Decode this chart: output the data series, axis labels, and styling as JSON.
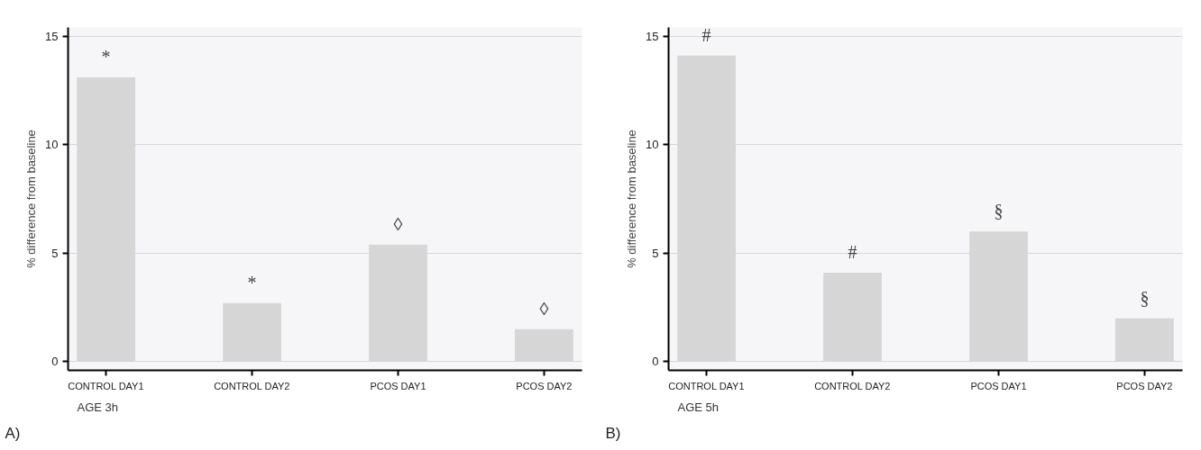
{
  "chart_data": [
    {
      "type": "bar",
      "categories": [
        "CONTROL DAY1",
        "CONTROL DAY2",
        "PCOS DAY1",
        "PCOS DAY2"
      ],
      "values": [
        13.1,
        2.7,
        5.4,
        1.5
      ],
      "color": "#d6d6d6",
      "ylabel": "% difference from baseline",
      "ylim": [
        -0.4,
        15.4
      ],
      "yticks": [
        0,
        5,
        10,
        15
      ],
      "grid": "y",
      "annotations": [
        {
          "text": "*",
          "x": "CONTROL DAY1",
          "y": 13.1
        },
        {
          "text": "*",
          "x": "CONTROL DAY2",
          "y": 2.7
        },
        {
          "text": "◊",
          "x": "PCOS DAY1",
          "y": 5.4
        },
        {
          "text": "◊",
          "x": "PCOS DAY2",
          "y": 1.5
        },
        "AGE 3h",
        "A)"
      ]
    },
    {
      "type": "bar",
      "categories": [
        "CONTROL DAY1",
        "CONTROL DAY2",
        "PCOS DAY1",
        "PCOS DAY2"
      ],
      "values": [
        14.1,
        4.1,
        6.0,
        2.0
      ],
      "color": "#d6d6d6",
      "ylabel": "% difference from baseline",
      "ylim": [
        -0.4,
        15.4
      ],
      "yticks": [
        0,
        5,
        10,
        15
      ],
      "grid": "y",
      "annotations": [
        {
          "text": "#",
          "x": "CONTROL DAY1",
          "y": 14.1
        },
        {
          "text": "#",
          "x": "CONTROL DAY2",
          "y": 4.1
        },
        {
          "text": "§",
          "x": "PCOS DAY1",
          "y": 6.0
        },
        {
          "text": "§",
          "x": "PCOS DAY2",
          "y": 2.0
        },
        "AGE 5h",
        "B)"
      ]
    }
  ]
}
